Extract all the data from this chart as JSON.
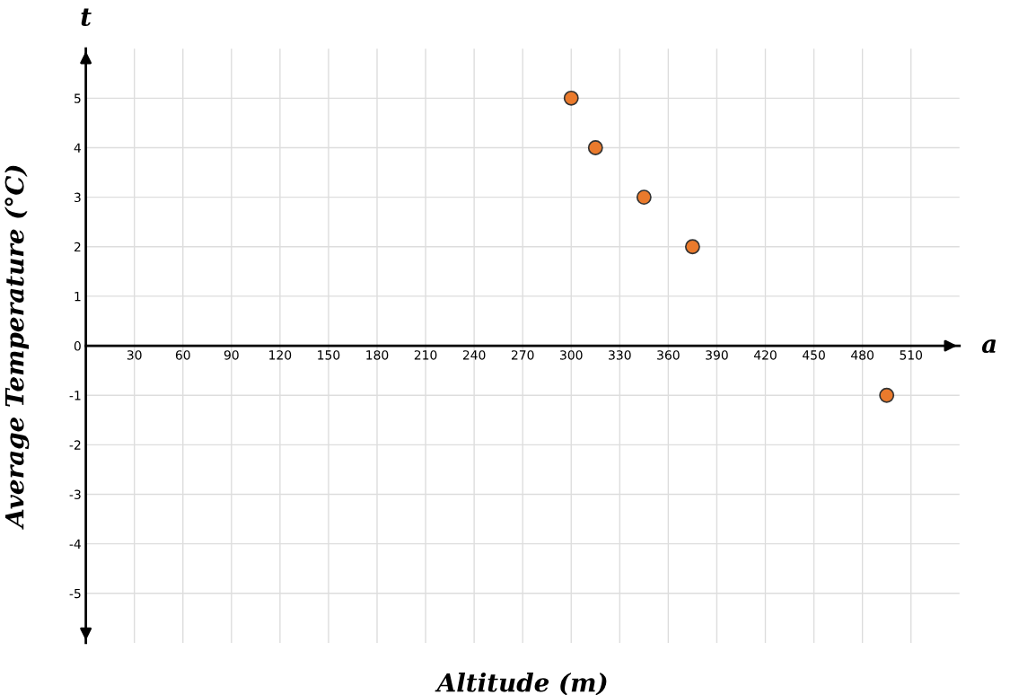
{
  "chart_data": {
    "type": "scatter",
    "xlabel": "Altitude (m)",
    "ylabel": "Average Temperature (°C)",
    "x": [
      300,
      315,
      345,
      375,
      495
    ],
    "series": [
      {
        "color": "#ea7a2c",
        "values": [
          5,
          4,
          3,
          2,
          -1
        ]
      }
    ],
    "xlim": [
      0,
      540
    ],
    "ylim": [
      -6,
      6
    ],
    "xticks": [
      30,
      60,
      90,
      120,
      150,
      180,
      210,
      240,
      270,
      300,
      330,
      360,
      390,
      420,
      450,
      480,
      510
    ],
    "yticks": [
      -5,
      -4,
      -3,
      -2,
      -1,
      0,
      1,
      2,
      3,
      4,
      5
    ],
    "grid": true,
    "marker": "circle",
    "annotations": [
      "t",
      "a"
    ]
  }
}
